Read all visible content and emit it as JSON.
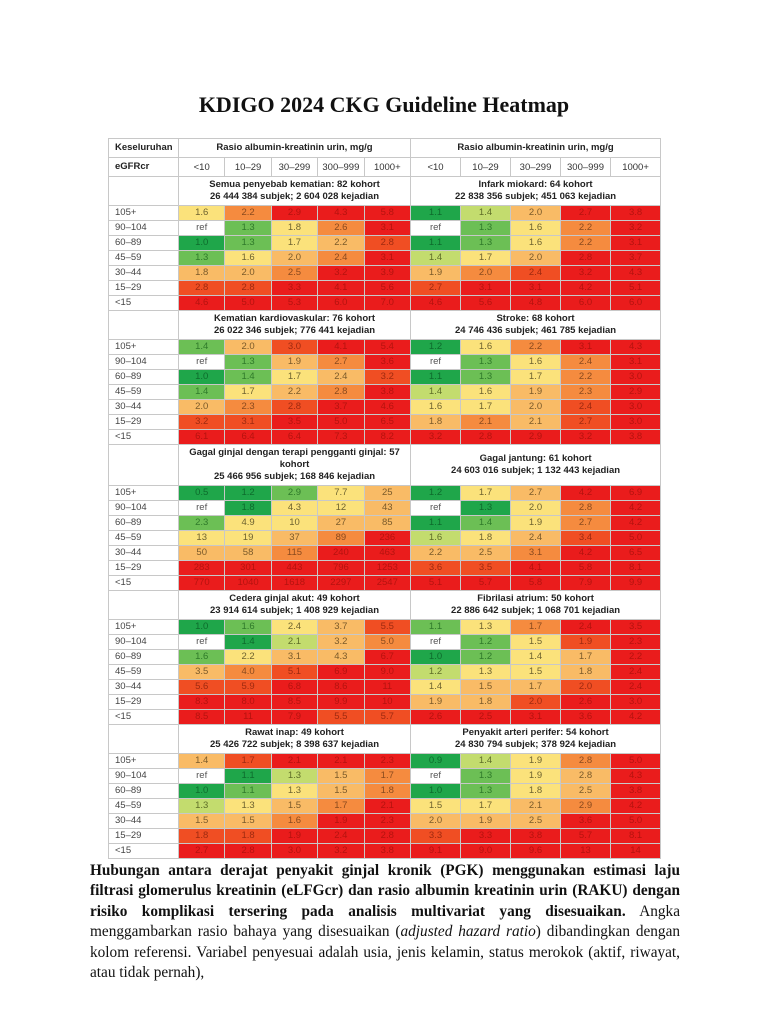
{
  "title": "KDIGO 2024 CKG Guideline Heatmap",
  "table": {
    "corner_label": "Keseluruhan",
    "row_header_label": "eGFRcr",
    "acr_header": "Rasio albumin-kreatinin urin, mg/g",
    "acr_columns": [
      "<10",
      "10–29",
      "30–299",
      "300–999",
      "1000+"
    ],
    "egfr_rows": [
      "105+",
      "90–104",
      "60–89",
      "45–59",
      "30–44",
      "15–29",
      "<15"
    ],
    "color_scale": {
      "G": "#1fa64a",
      "L": "#6cbf55",
      "P": "#c3dc6e",
      "Y": "#fbe27b",
      "A": "#f9bb66",
      "O": "#f58b3f",
      "R": "#f04e23",
      "X": "#ea1c1c",
      "W": "#ffffff"
    },
    "sections": [
      {
        "left": {
          "title": "Semua penyebab kematian: 82 kohort",
          "subtitle": "26 444 384 subjek; 2 604 028 kejadian",
          "values": [
            [
              "1.6",
              "2.2",
              "2.9",
              "4.3",
              "5.8"
            ],
            [
              "ref",
              "1.3",
              "1.8",
              "2.6",
              "3.1"
            ],
            [
              "1.0",
              "1.3",
              "1.7",
              "2.2",
              "2.8"
            ],
            [
              "1.3",
              "1.6",
              "2.0",
              "2.4",
              "3.1"
            ],
            [
              "1.8",
              "2.0",
              "2.5",
              "3.2",
              "3.9"
            ],
            [
              "2.8",
              "2.8",
              "3.3",
              "4.1",
              "5.6"
            ],
            [
              "4.6",
              "5.0",
              "5.3",
              "6.0",
              "7.0"
            ]
          ],
          "colors": [
            "YOXXX",
            "WLYOX",
            "GLYAR",
            "LYAOX",
            "AAOXX",
            "RRXXX",
            "XXXXX"
          ]
        },
        "right": {
          "title": "Infark miokard: 64 kohort",
          "subtitle": "22 838 356 subjek; 451 063 kejadian",
          "values": [
            [
              "1.1",
              "1.4",
              "2.0",
              "2.7",
              "3.8"
            ],
            [
              "ref",
              "1.3",
              "1.6",
              "2.2",
              "3.2"
            ],
            [
              "1.1",
              "1.3",
              "1.6",
              "2.2",
              "3.1"
            ],
            [
              "1.4",
              "1.7",
              "2.0",
              "2.8",
              "3.7"
            ],
            [
              "1.9",
              "2.0",
              "2.4",
              "3.2",
              "4.3"
            ],
            [
              "2.7",
              "3.1",
              "3.1",
              "4.2",
              "5.1"
            ],
            [
              "4.6",
              "5.6",
              "4.8",
              "6.0",
              "6.0"
            ]
          ],
          "colors": [
            "GPAXX",
            "WLYOX",
            "GLYOX",
            "PYAXX",
            "AORXX",
            "RXXXX",
            "XXXXX"
          ]
        }
      },
      {
        "left": {
          "title": "Kematian kardiovaskular: 76 kohort",
          "subtitle": "26 022 346 subjek; 776 441 kejadian",
          "values": [
            [
              "1.4",
              "2.0",
              "3.0",
              "4.1",
              "5.4"
            ],
            [
              "ref",
              "1.3",
              "1.9",
              "2.7",
              "3.6"
            ],
            [
              "1.0",
              "1.4",
              "1.7",
              "2.4",
              "3.2"
            ],
            [
              "1.4",
              "1.7",
              "2.2",
              "2.8",
              "3.8"
            ],
            [
              "2.0",
              "2.3",
              "2.8",
              "3.7",
              "4.6"
            ],
            [
              "3.2",
              "3.1",
              "3.5",
              "5.0",
              "6.5"
            ],
            [
              "6.1",
              "6.4",
              "6.4",
              "7.3",
              "8.2"
            ]
          ],
          "colors": [
            "LARXX",
            "WLAOX",
            "GLYAR",
            "LYAOX",
            "AORXX",
            "RRXXX",
            "XXXXX"
          ]
        },
        "right": {
          "title": "Stroke: 68 kohort",
          "subtitle": "24 746 436 subjek; 461 785 kejadian",
          "values": [
            [
              "1.2",
              "1.6",
              "2.2",
              "3.1",
              "4.3"
            ],
            [
              "ref",
              "1.3",
              "1.6",
              "2.4",
              "3.1"
            ],
            [
              "1.1",
              "1.3",
              "1.7",
              "2.2",
              "3.0"
            ],
            [
              "1.4",
              "1.6",
              "1.9",
              "2.3",
              "2.9"
            ],
            [
              "1.6",
              "1.7",
              "2.0",
              "2.4",
              "3.0"
            ],
            [
              "1.8",
              "2.1",
              "2.1",
              "2.7",
              "3.0"
            ],
            [
              "3.2",
              "2.8",
              "2.9",
              "3.2",
              "3.8"
            ]
          ],
          "colors": [
            "GYOXX",
            "WLYOX",
            "GLYOX",
            "PYAOX",
            "YYARX",
            "AOARX",
            "XXXXX"
          ]
        }
      },
      {
        "left": {
          "title": "Gagal ginjal dengan terapi pengganti ginjal: 57 kohort",
          "subtitle": "25 466 956 subjek; 168 846 kejadian",
          "values": [
            [
              "0.5",
              "1.2",
              "2.9",
              "7.7",
              "25"
            ],
            [
              "ref",
              "1.8",
              "4.3",
              "12",
              "43"
            ],
            [
              "2.3",
              "4.9",
              "10",
              "27",
              "85"
            ],
            [
              "13",
              "19",
              "37",
              "89",
              "236"
            ],
            [
              "50",
              "58",
              "115",
              "240",
              "463"
            ],
            [
              "283",
              "301",
              "443",
              "796",
              "1253"
            ],
            [
              "770",
              "1040",
              "1618",
              "2297",
              "2547"
            ]
          ],
          "colors": [
            "GGLYA",
            "WGYYA",
            "LYYAA",
            "YYAOX",
            "AAOXX",
            "XXXXX",
            "XXXXX"
          ]
        },
        "right": {
          "title": "Gagal jantung: 61 kohort",
          "subtitle": "24 603 016 subjek; 1 132 443 kejadian",
          "values": [
            [
              "1.2",
              "1.7",
              "2.7",
              "4.2",
              "6.9"
            ],
            [
              "ref",
              "1.3",
              "2.0",
              "2.8",
              "4.2"
            ],
            [
              "1.1",
              "1.4",
              "1.9",
              "2.7",
              "4.2"
            ],
            [
              "1.6",
              "1.8",
              "2.4",
              "3.4",
              "5.0"
            ],
            [
              "2.2",
              "2.5",
              "3.1",
              "4.2",
              "6.5"
            ],
            [
              "3.6",
              "3.5",
              "4.1",
              "5.8",
              "8.1"
            ],
            [
              "5.1",
              "5.7",
              "5.8",
              "7.9",
              "9.9"
            ]
          ],
          "colors": [
            "GYAXX",
            "WGYOX",
            "GLYOX",
            "PYARX",
            "AAOXX",
            "RRXXX",
            "XXXXX"
          ]
        }
      },
      {
        "left": {
          "title": "Cedera ginjal akut: 49 kohort",
          "subtitle": "23 914 614 subjek; 1 408 929 kejadian",
          "values": [
            [
              "1.0",
              "1.6",
              "2.4",
              "3.7",
              "5.5"
            ],
            [
              "ref",
              "1.4",
              "2.1",
              "3.2",
              "5.0"
            ],
            [
              "1.6",
              "2.2",
              "3.1",
              "4.3",
              "6.7"
            ],
            [
              "3.5",
              "4.0",
              "5.1",
              "6.9",
              "9.0"
            ],
            [
              "5.6",
              "5.9",
              "6.8",
              "8.6",
              "11"
            ],
            [
              "8.3",
              "8.0",
              "8.5",
              "9.9",
              "10"
            ],
            [
              "8.5",
              "11",
              "7.9",
              "5.5",
              "5.7"
            ]
          ],
          "colors": [
            "GLYAR",
            "WGPAO",
            "LYAAX",
            "AORXX",
            "RRXXX",
            "XXXXX",
            "XXXRR"
          ]
        },
        "right": {
          "title": "Fibrilasi atrium: 50 kohort",
          "subtitle": "22 886 642 subjek; 1 068 701 kejadian",
          "values": [
            [
              "1.1",
              "1.3",
              "1.7",
              "2.4",
              "3.5"
            ],
            [
              "ref",
              "1.2",
              "1.5",
              "1.9",
              "2.3"
            ],
            [
              "1.0",
              "1.2",
              "1.4",
              "1.7",
              "2.2"
            ],
            [
              "1.2",
              "1.3",
              "1.5",
              "1.8",
              "2.4"
            ],
            [
              "1.4",
              "1.5",
              "1.7",
              "2.0",
              "2.4"
            ],
            [
              "1.9",
              "1.8",
              "2.0",
              "2.6",
              "3.0"
            ],
            [
              "2.6",
              "2.5",
              "3.1",
              "3.6",
              "4.2"
            ]
          ],
          "colors": [
            "LYOXX",
            "WLYRX",
            "GLYAX",
            "PYYAX",
            "YAARX",
            "AARXX",
            "XXXXX"
          ]
        }
      },
      {
        "left": {
          "title": "Rawat inap: 49 kohort",
          "subtitle": "25 426 722 subjek; 8 398 637 kejadian",
          "values": [
            [
              "1.4",
              "1.7",
              "2.1",
              "2.1",
              "2.3"
            ],
            [
              "ref",
              "1.1",
              "1.3",
              "1.5",
              "1.7"
            ],
            [
              "1.0",
              "1.1",
              "1.3",
              "1.5",
              "1.8"
            ],
            [
              "1.3",
              "1.3",
              "1.5",
              "1.7",
              "2.1"
            ],
            [
              "1.5",
              "1.5",
              "1.6",
              "1.9",
              "2.3"
            ],
            [
              "1.8",
              "1.8",
              "1.9",
              "2.4",
              "2.8"
            ],
            [
              "2.7",
              "2.8",
              "3.0",
              "3.2",
              "3.8"
            ]
          ],
          "colors": [
            "ARXXX",
            "WGPAO",
            "GLYAO",
            "PYAOX",
            "AAOXX",
            "RRXXX",
            "XXXXX"
          ]
        },
        "right": {
          "title": "Penyakit arteri perifer: 54 kohort",
          "subtitle": "24 830 794 subjek; 378 924 kejadian",
          "values": [
            [
              "0.9",
              "1.4",
              "1.9",
              "2.8",
              "5.0"
            ],
            [
              "ref",
              "1.3",
              "1.9",
              "2.8",
              "4.3"
            ],
            [
              "1.0",
              "1.3",
              "1.8",
              "2.5",
              "3.8"
            ],
            [
              "1.5",
              "1.7",
              "2.1",
              "2.9",
              "4.2"
            ],
            [
              "2.0",
              "1.9",
              "2.5",
              "3.6",
              "5.0"
            ],
            [
              "3.3",
              "3.3",
              "3.8",
              "5.7",
              "8.1"
            ],
            [
              "9.1",
              "9.0",
              "9.6",
              "13",
              "14"
            ]
          ],
          "colors": [
            "GPYOX",
            "WLYAX",
            "GLYAX",
            "YYAOX",
            "AAAXX",
            "RXXXX",
            "XXXXX"
          ]
        }
      }
    ]
  },
  "caption": {
    "bold": "Hubungan antara derajat penyakit ginjal kronik (PGK) menggunakan estimasi laju filtrasi glomerulus kreatinin (eLFGcr) dan rasio albumin kreatinin urin (RAKU) dengan risiko komplikasi tersering pada analisis multivariat yang disesuaikan.",
    "text1": " Angka menggambarkan rasio bahaya yang disesuaikan (",
    "italic": "adjusted hazard ratio",
    "text2": ") dibandingkan dengan kolom referensi. Variabel penyesuai adalah usia, jenis kelamin, status merokok (aktif, riwayat, atau tidak pernah),"
  }
}
